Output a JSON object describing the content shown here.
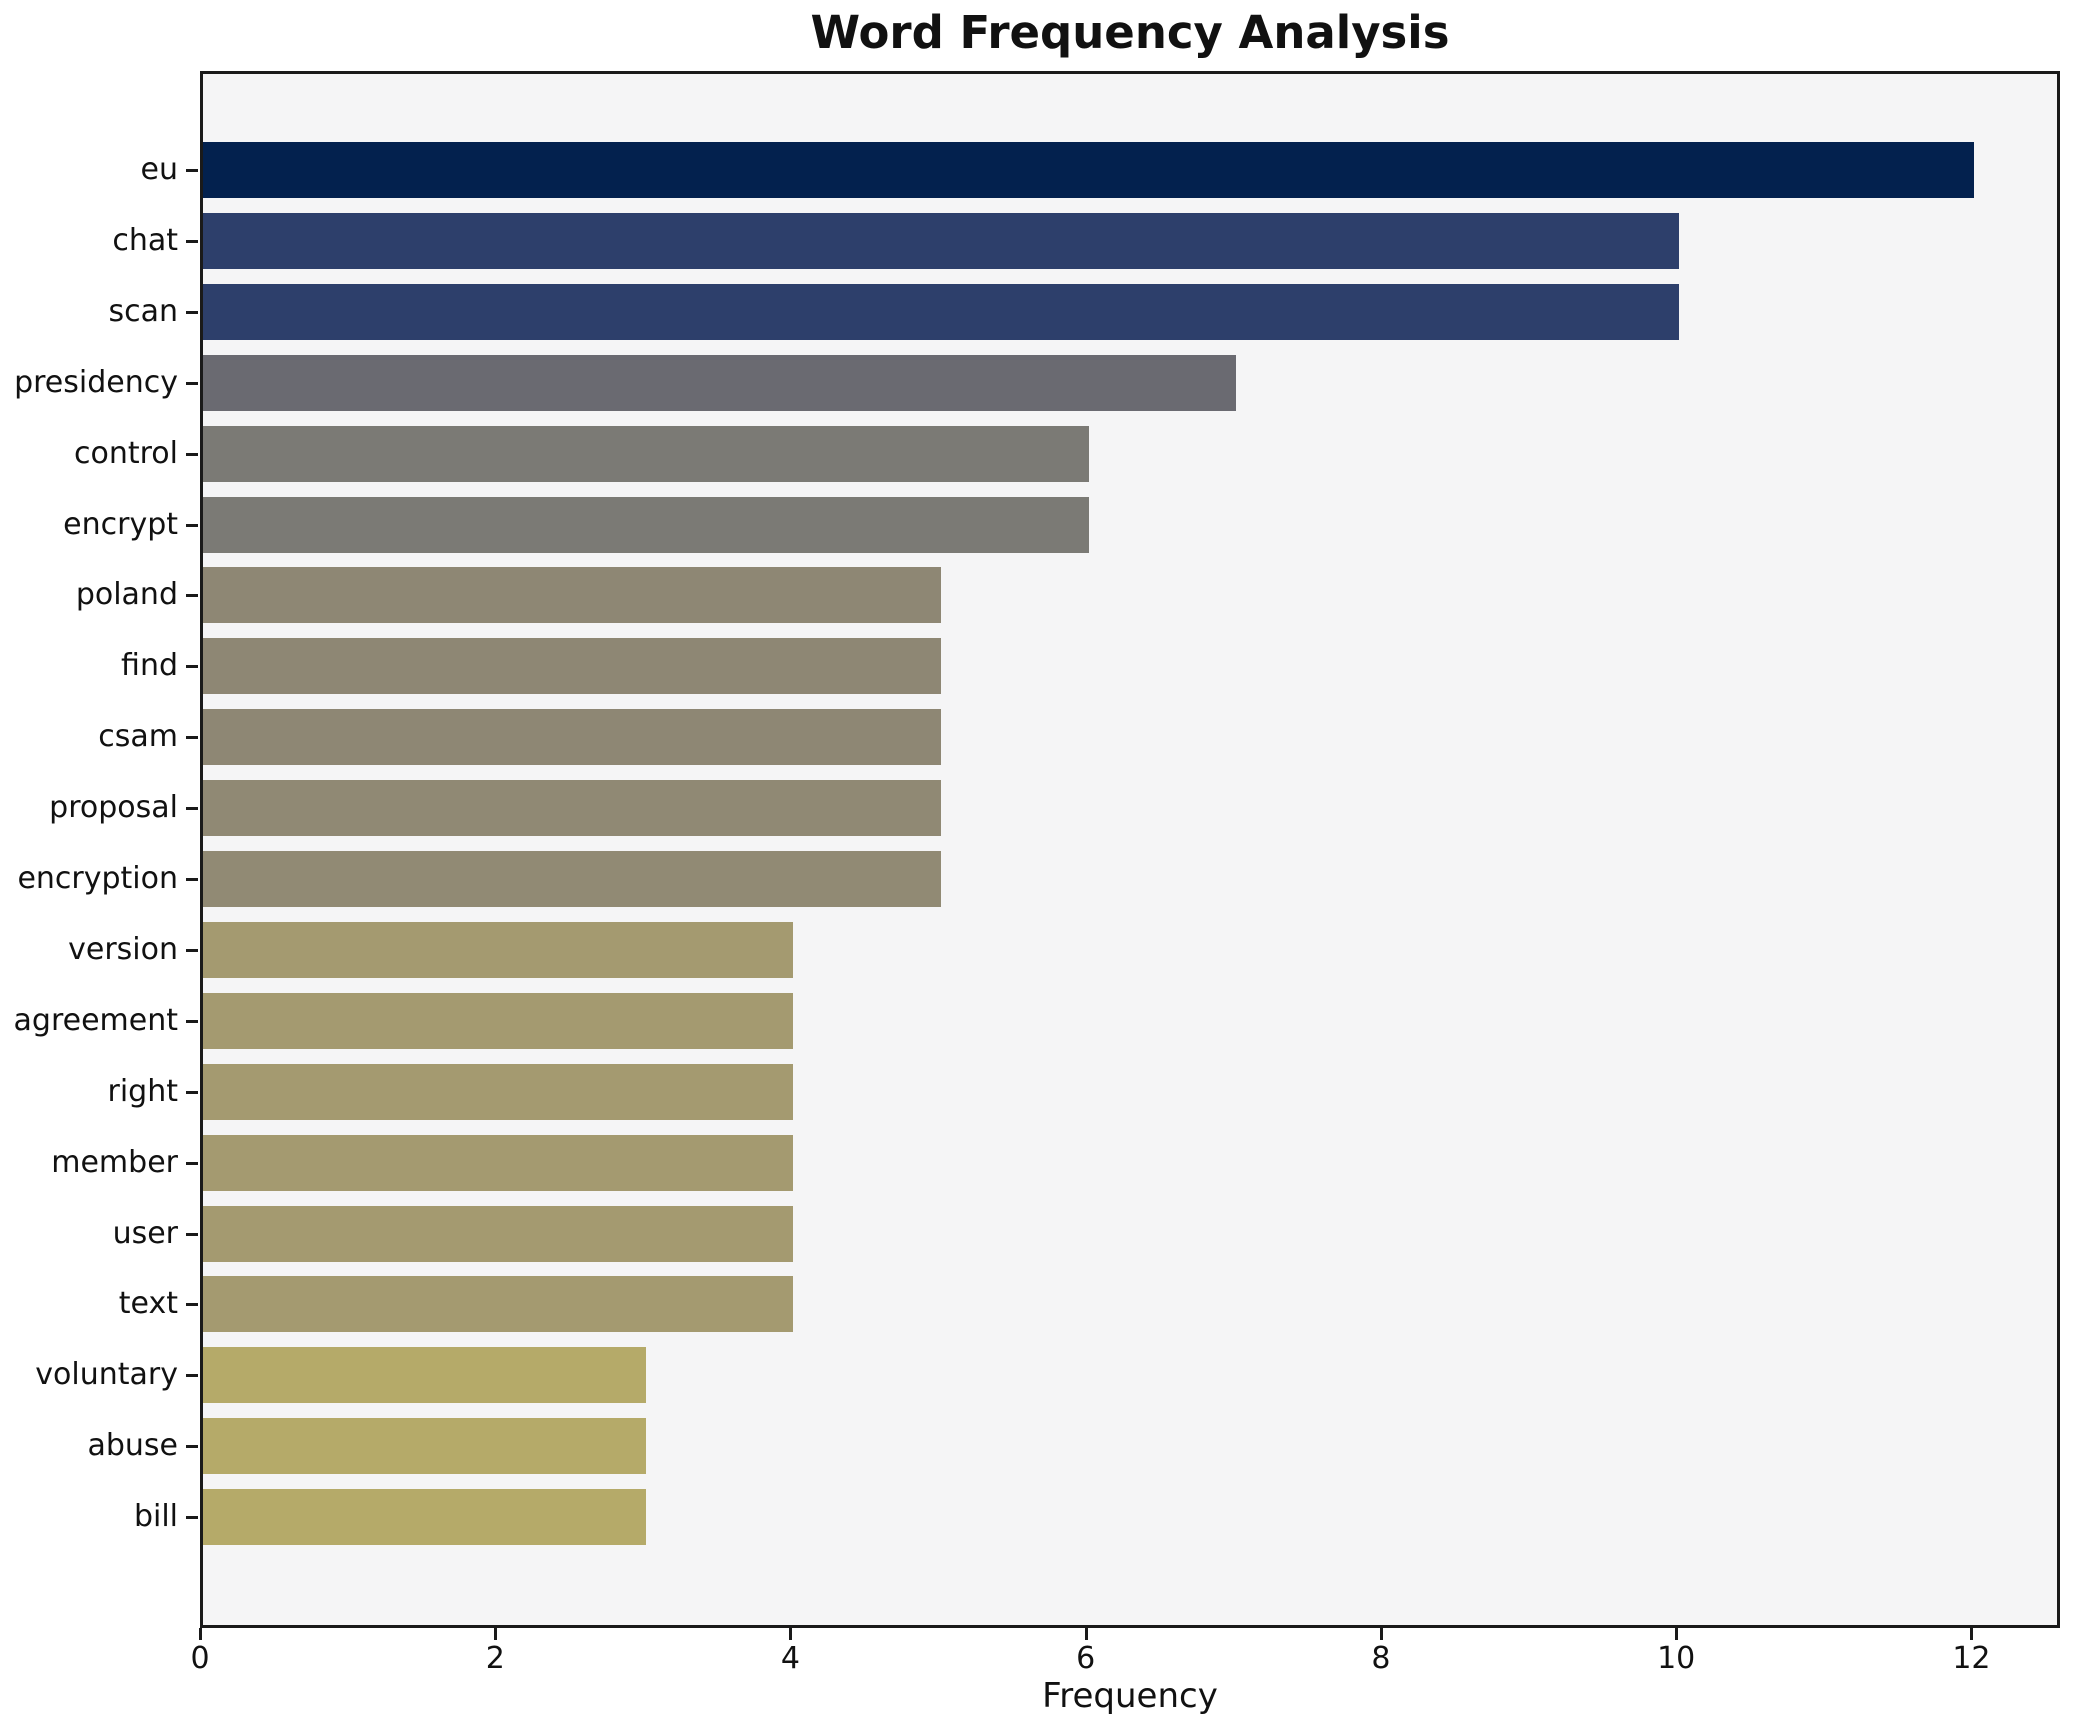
{
  "title": "Word Frequency Analysis",
  "x_axis_label": "Frequency",
  "chart_data": {
    "type": "bar",
    "orientation": "horizontal",
    "title": "Word Frequency Analysis",
    "xlabel": "Frequency",
    "ylabel": "",
    "categories": [
      "eu",
      "chat",
      "scan",
      "presidency",
      "control",
      "encrypt",
      "poland",
      "find",
      "csam",
      "proposal",
      "encryption",
      "version",
      "agreement",
      "right",
      "member",
      "user",
      "text",
      "voluntary",
      "abuse",
      "bill"
    ],
    "values": [
      12,
      10,
      10,
      7,
      6,
      6,
      5,
      5,
      5,
      5,
      5,
      4,
      4,
      4,
      4,
      4,
      4,
      3,
      3,
      3
    ],
    "bar_colors": [
      "#03214e",
      "#2d3f6b",
      "#2d3f6b",
      "#6a6a71",
      "#7b7a75",
      "#7b7a75",
      "#8e8774",
      "#8e8774",
      "#8e8774",
      "#908974",
      "#918a74",
      "#a49a70",
      "#a49a70",
      "#a49a70",
      "#a49a70",
      "#a49a70",
      "#a49a70",
      "#b5aa69",
      "#b5aa69",
      "#b5aa69"
    ],
    "xticks": [
      0,
      2,
      4,
      6,
      8,
      10,
      12
    ],
    "xlim": [
      0,
      12.6
    ],
    "grid": false,
    "legend": "none",
    "plot_background": "#f5f5f6",
    "figure_background": "#ffffff"
  }
}
